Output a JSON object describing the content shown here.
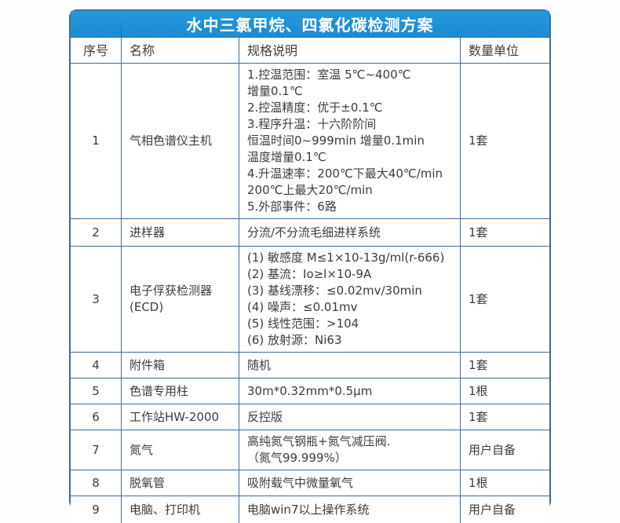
{
  "title": "水中三氯甲烷、四氯化碳检测方案",
  "colors": {
    "title_bar_blue": "#1e90d8",
    "table_border": "#3e6d98",
    "text": "#3c3c3c",
    "title_text": "#ffffff"
  },
  "table": {
    "headers": [
      "序号",
      "名称",
      "规格说明",
      "数量单位"
    ],
    "rows": [
      {
        "no": "1",
        "name": "气相色谱仪主机",
        "spec": "1.控温范围：室温 5℃~400℃\n增量0.1℃\n2.控温精度：优于±0.1℃\n3.程序升温：十六阶阶间\n恒温时间0~999min 增量0.1min\n温度增量0.1℃\n4.升温速率：200℃下最大40℃/min\n200℃上最大20℃/min\n5.外部事件：6路",
        "qty": "1套"
      },
      {
        "no": "2",
        "name": "进样器",
        "spec": "分流/不分流毛细进样系统",
        "qty": "1套"
      },
      {
        "no": "3",
        "name": "电子俘获检测器\n(ECD)",
        "spec": "(1) 敏感度 M≤1×10-13g/ml(r-666)\n(2) 基流：Io≥l×10-9A\n(3) 基线漂移：≤0.02mv/30min\n(4) 噪声：≤0.01mv\n(5) 线性范围：>104\n(6) 放射源：Ni63",
        "qty": "1套"
      },
      {
        "no": "4",
        "name": "附件箱",
        "spec": "随机",
        "qty": "1套"
      },
      {
        "no": "5",
        "name": "色谱专用柱",
        "spec": "30m*0.32mm*0.5μm",
        "qty": "1根"
      },
      {
        "no": "6",
        "name": "工作站HW-2000",
        "spec": "反控版",
        "qty": "1套"
      },
      {
        "no": "7",
        "name": "氮气",
        "spec": "高纯氮气钢瓶+氮气减压阀.\n（氮气99.999%）",
        "qty": "用户自备"
      },
      {
        "no": "8",
        "name": "脱氧管",
        "spec": "吸附载气中微量氧气",
        "qty": "1根"
      },
      {
        "no": "9",
        "name": "电脑、打印机",
        "spec": "电脑win7以上操作系统",
        "qty": "用户自备"
      }
    ]
  }
}
